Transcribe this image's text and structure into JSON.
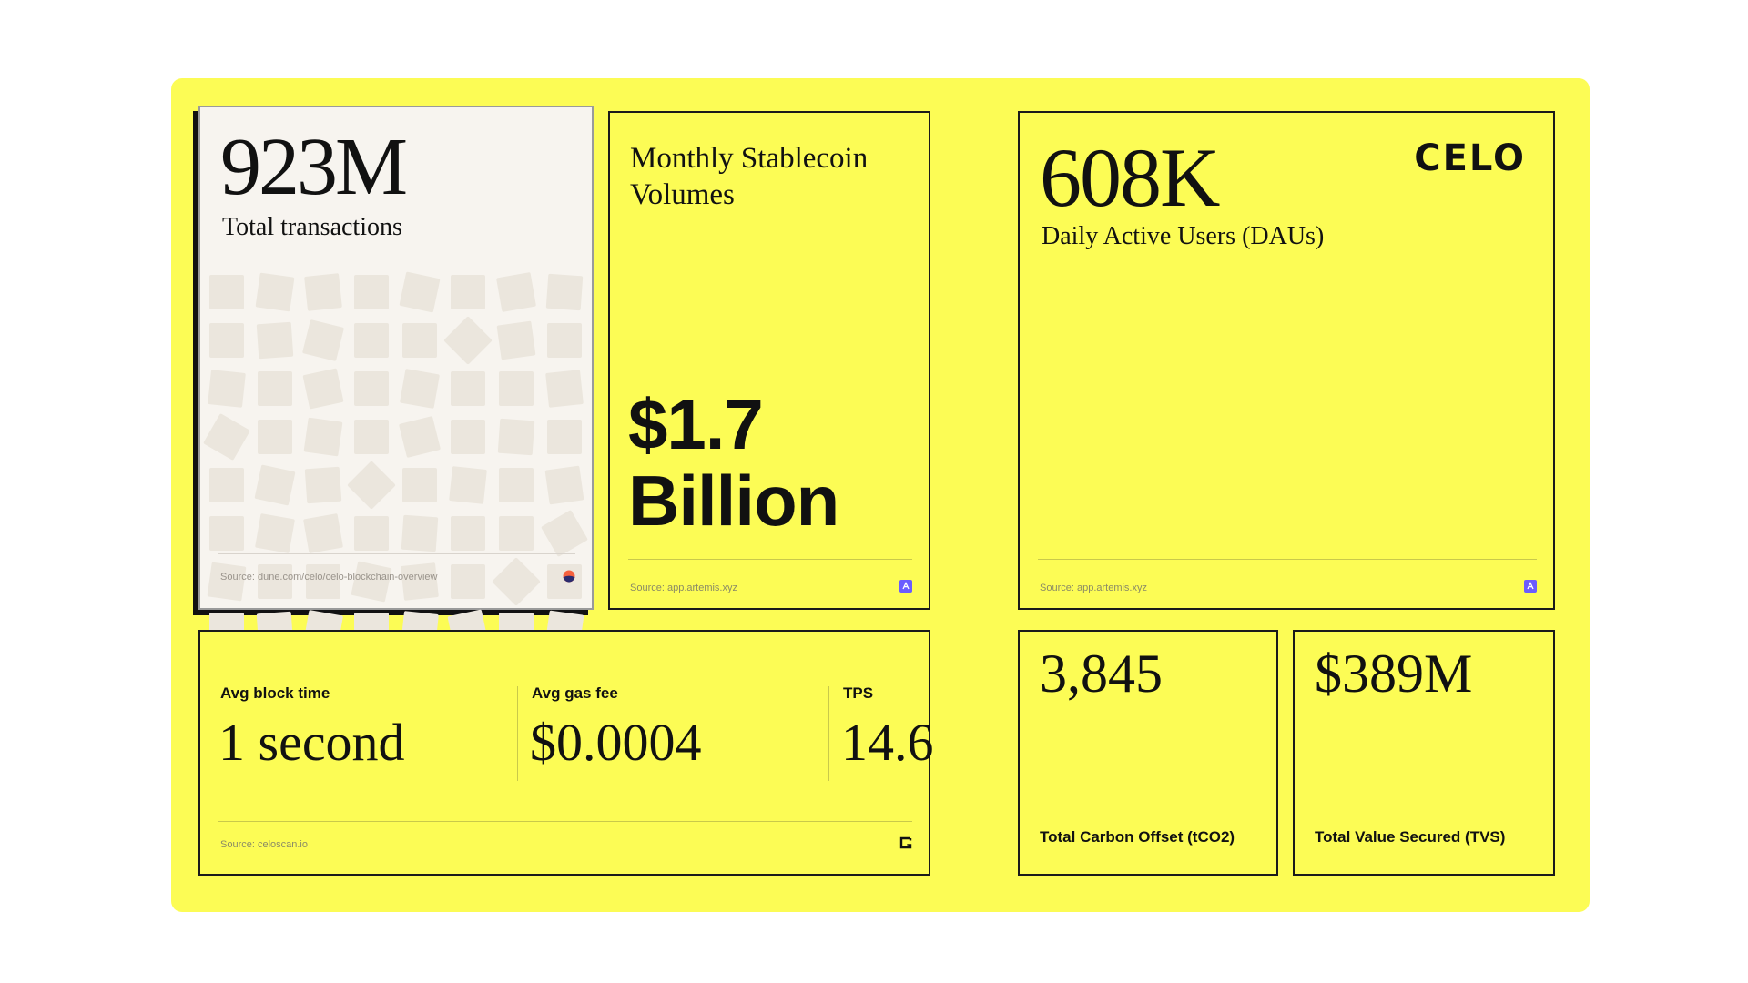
{
  "total_tx": {
    "value": "923M",
    "label": "Total transactions",
    "source": "Source: dune.com/celo/celo-blockchain-overview",
    "icon": "dune-logo-icon"
  },
  "stablecoin": {
    "title_line1": "Monthly Stablecoin",
    "title_line2": "Volumes",
    "value_line1": "$1.7",
    "value_line2": "Billion",
    "source": "Source: app.artemis.xyz",
    "icon": "artemis-logo-icon"
  },
  "dau": {
    "value": "608K",
    "label": "Daily Active Users (DAUs)",
    "brand": "CELO",
    "source": "Source: app.artemis.xyz",
    "icon": "artemis-logo-icon"
  },
  "network": {
    "metrics": [
      {
        "label": "Avg block time",
        "value": "1 second"
      },
      {
        "label": "Avg gas fee",
        "value": "$0.0004"
      },
      {
        "label": "TPS",
        "value": "14.6"
      }
    ],
    "source": "Source: celoscan.io",
    "icon": "celoscan-logo-icon"
  },
  "carbon": {
    "value": "3,845",
    "label": "Total Carbon Offset (tCO2)"
  },
  "tvs": {
    "value": "$389M",
    "label": "Total Value Secured (TVS)"
  },
  "colors": {
    "brand_yellow": "#FCFC55",
    "card_cream": "#F7F4EF",
    "artemis_purple": "#6B5CFF"
  }
}
